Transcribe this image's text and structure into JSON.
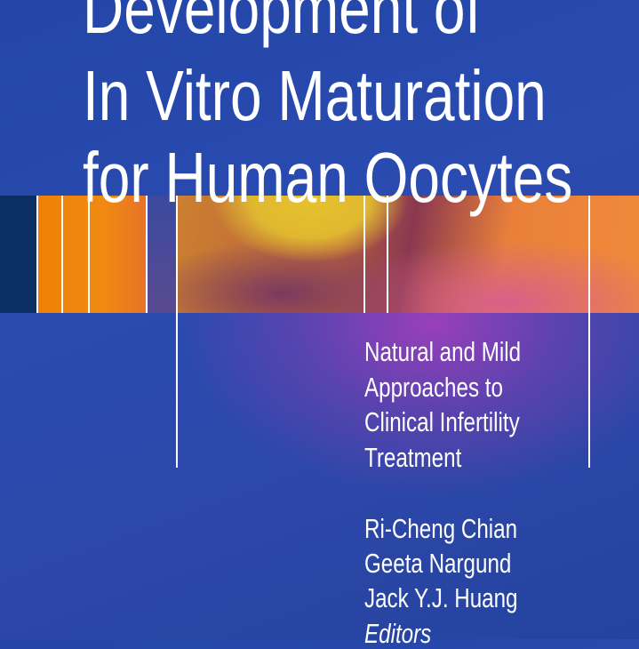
{
  "cover": {
    "title_lines": [
      "Development of",
      "In Vitro Maturation",
      "for Human Oocytes"
    ],
    "subtitle_lines": [
      "Natural and Mild",
      "Approaches to",
      "Clinical Infertility",
      "Treatment"
    ],
    "editors": [
      "Ri-Cheng Chian",
      "Geeta Nargund",
      "Jack Y.J. Huang"
    ],
    "editors_label": "Editors",
    "colors": {
      "background": "#2a4bb0",
      "accent_orange": "#f08008",
      "navy": "#0b2f62",
      "yellow": "#e6c22c"
    }
  }
}
